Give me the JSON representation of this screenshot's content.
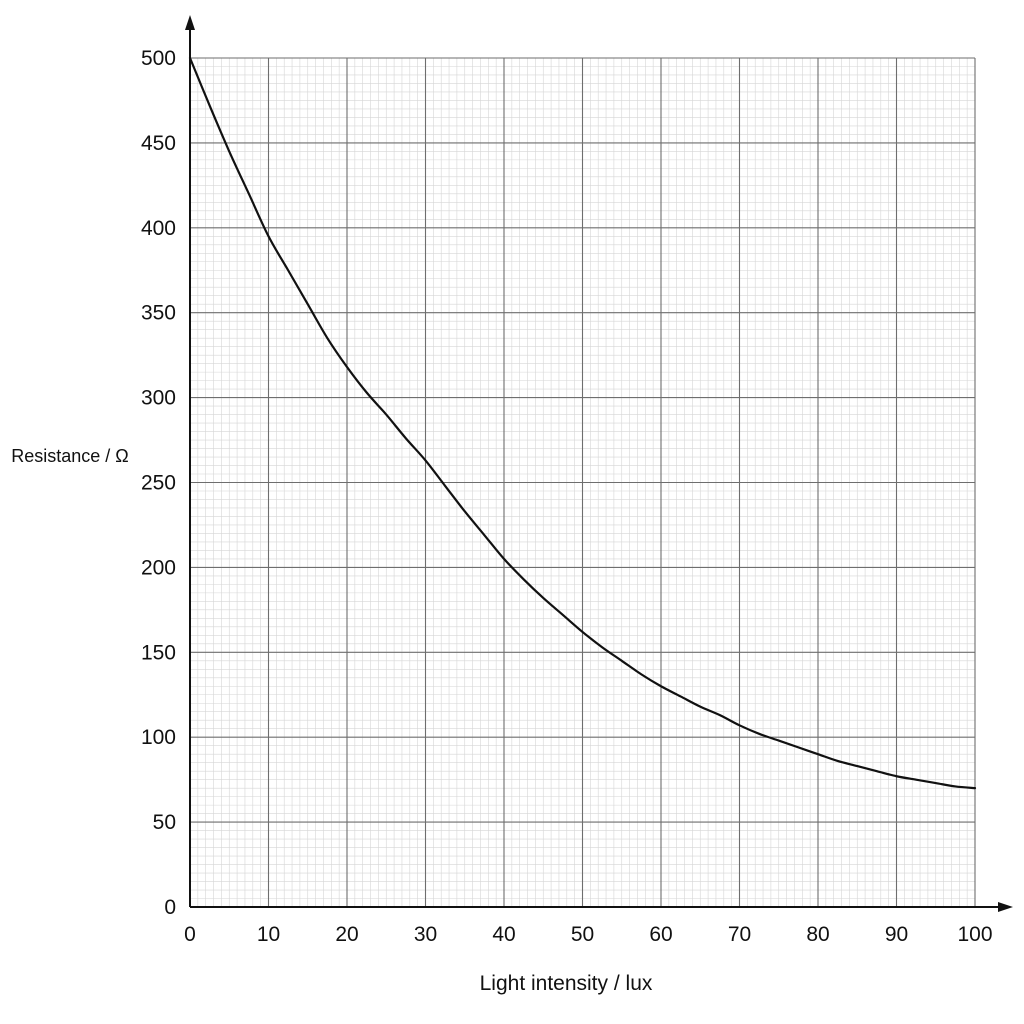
{
  "chart_data": {
    "type": "line",
    "title": "",
    "xlabel": "Light intensity / lux",
    "ylabel": "Resistance / Ω",
    "xlim": [
      0,
      100
    ],
    "ylim": [
      0,
      500
    ],
    "x_ticks": [
      "0",
      "10",
      "20",
      "30",
      "40",
      "50",
      "60",
      "70",
      "80",
      "90",
      "100"
    ],
    "y_ticks": [
      "0",
      "50",
      "100",
      "150",
      "200",
      "250",
      "300",
      "350",
      "400",
      "450",
      "500"
    ],
    "grid": {
      "major_step_x": 10,
      "major_step_y": 50,
      "minor_step_x": 1,
      "minor_step_y": 5
    },
    "series": [
      {
        "color": "#111111",
        "points": [
          [
            0,
            500
          ],
          [
            2.5,
            472
          ],
          [
            5,
            445
          ],
          [
            7.5,
            420
          ],
          [
            10,
            395
          ],
          [
            12.5,
            375
          ],
          [
            15,
            355
          ],
          [
            17.5,
            335
          ],
          [
            20,
            318
          ],
          [
            22.5,
            303
          ],
          [
            25,
            290
          ],
          [
            27.5,
            276
          ],
          [
            30,
            263
          ],
          [
            32.5,
            248
          ],
          [
            35,
            233
          ],
          [
            37.5,
            219
          ],
          [
            40,
            205
          ],
          [
            42.5,
            193
          ],
          [
            45,
            182
          ],
          [
            47.5,
            172
          ],
          [
            50,
            162
          ],
          [
            52.5,
            153
          ],
          [
            55,
            145
          ],
          [
            57.5,
            137
          ],
          [
            60,
            130
          ],
          [
            62.5,
            124
          ],
          [
            65,
            118
          ],
          [
            67.5,
            113
          ],
          [
            70,
            107
          ],
          [
            72.5,
            102
          ],
          [
            75,
            98
          ],
          [
            77.5,
            94
          ],
          [
            80,
            90
          ],
          [
            82.5,
            86
          ],
          [
            85,
            83
          ],
          [
            87.5,
            80
          ],
          [
            90,
            77
          ],
          [
            92.5,
            75
          ],
          [
            95,
            73
          ],
          [
            97.5,
            71
          ],
          [
            100,
            70
          ]
        ]
      }
    ]
  }
}
